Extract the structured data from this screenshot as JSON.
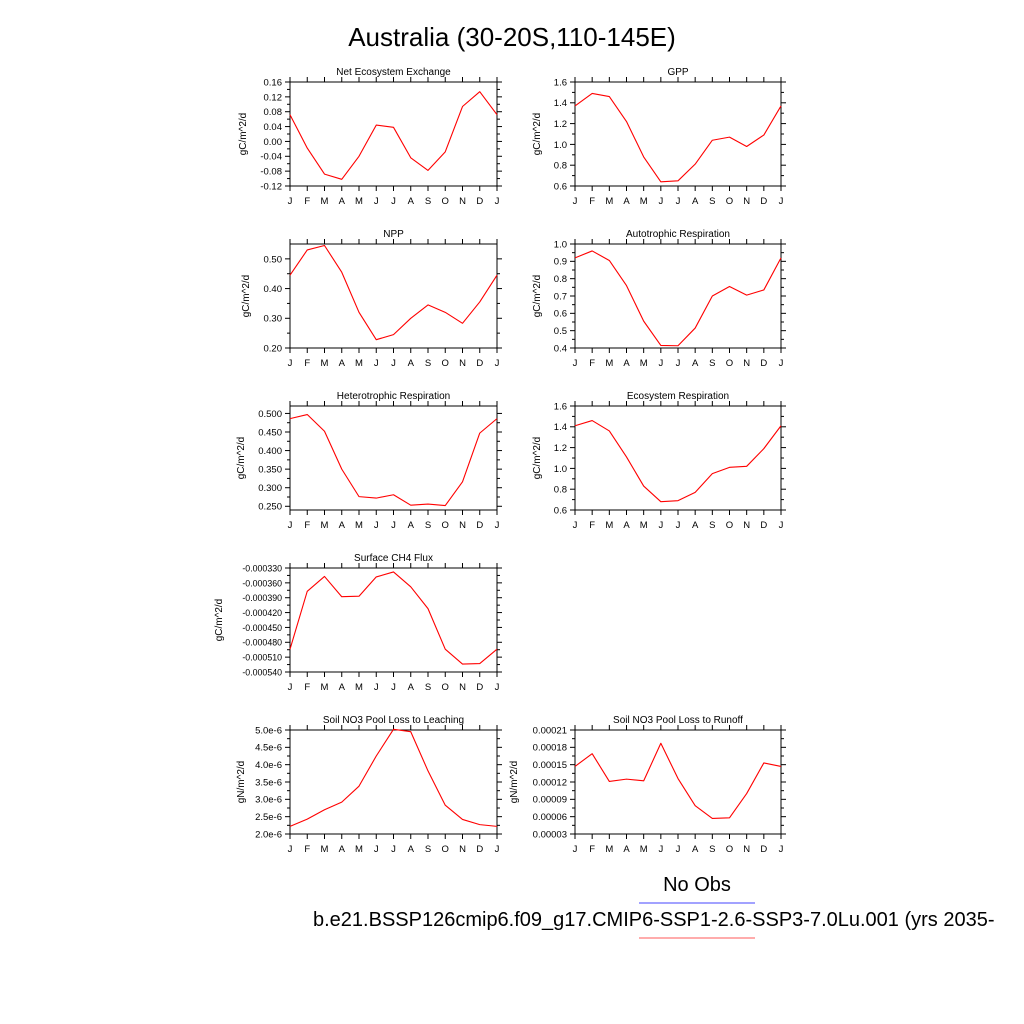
{
  "figure": {
    "title": "Australia (30-20S,110-145E)",
    "legend_no_obs": "No Obs",
    "legend_case": "b.e21.BSSP126cmip6.f09_g17.CMIP6-SSP1-2.6-SSP3-7.0Lu.001 (yrs 2035-",
    "colors": {
      "model": "#ff0000",
      "obs": "#6a6aff",
      "case_line": "#ff7a7a",
      "axis": "#000000"
    }
  },
  "chart_data": [
    {
      "type": "line",
      "title": "Net Ecosystem Exchange",
      "xlabel": "",
      "ylabel": "gC/m^2/d",
      "categories": [
        "J",
        "F",
        "M",
        "A",
        "M",
        "J",
        "J",
        "A",
        "S",
        "O",
        "N",
        "D",
        "J"
      ],
      "ylim": [
        -0.12,
        0.16
      ],
      "yticks": [
        "0.16",
        "0.12",
        "0.08",
        "0.04",
        "0.00",
        "-0.04",
        "-0.08",
        "-0.12"
      ],
      "series": [
        {
          "values": [
            0.072,
            -0.018,
            -0.088,
            -0.102,
            -0.04,
            0.044,
            0.038,
            -0.044,
            -0.078,
            -0.028,
            0.094,
            0.134,
            0.072
          ]
        }
      ]
    },
    {
      "type": "line",
      "title": "GPP",
      "xlabel": "",
      "ylabel": "gC/m^2/d",
      "categories": [
        "J",
        "F",
        "M",
        "A",
        "M",
        "J",
        "J",
        "A",
        "S",
        "O",
        "N",
        "D",
        "J"
      ],
      "ylim": [
        0.6,
        1.6
      ],
      "yticks": [
        "1.6",
        "1.4",
        "1.2",
        "1.0",
        "0.8",
        "0.6"
      ],
      "series": [
        {
          "values": [
            1.37,
            1.49,
            1.46,
            1.22,
            0.88,
            0.64,
            0.65,
            0.81,
            1.04,
            1.07,
            0.98,
            1.09,
            1.37
          ]
        }
      ]
    },
    {
      "type": "line",
      "title": "NPP",
      "xlabel": "",
      "ylabel": "gC/m^2/d",
      "categories": [
        "J",
        "F",
        "M",
        "A",
        "M",
        "J",
        "J",
        "A",
        "S",
        "O",
        "N",
        "D",
        "J"
      ],
      "ylim": [
        0.2,
        0.55
      ],
      "yticks": [
        "0.50",
        "0.40",
        "0.30",
        "0.20"
      ],
      "series": [
        {
          "values": [
            0.445,
            0.53,
            0.545,
            0.455,
            0.32,
            0.228,
            0.245,
            0.3,
            0.345,
            0.32,
            0.283,
            0.355,
            0.445
          ]
        }
      ]
    },
    {
      "type": "line",
      "title": "Autotrophic Respiration",
      "xlabel": "",
      "ylabel": "gC/m^2/d",
      "categories": [
        "J",
        "F",
        "M",
        "A",
        "M",
        "J",
        "J",
        "A",
        "S",
        "O",
        "N",
        "D",
        "J"
      ],
      "ylim": [
        0.4,
        1.0
      ],
      "yticks": [
        "1.0",
        "0.9",
        "0.8",
        "0.7",
        "0.6",
        "0.5",
        "0.4"
      ],
      "series": [
        {
          "values": [
            0.92,
            0.96,
            0.905,
            0.76,
            0.555,
            0.415,
            0.413,
            0.515,
            0.7,
            0.755,
            0.705,
            0.735,
            0.92
          ]
        }
      ]
    },
    {
      "type": "line",
      "title": "Heterotrophic Respiration",
      "xlabel": "",
      "ylabel": "gC/m^2/d",
      "categories": [
        "J",
        "F",
        "M",
        "A",
        "M",
        "J",
        "J",
        "A",
        "S",
        "O",
        "N",
        "D",
        "J"
      ],
      "ylim": [
        0.24,
        0.52
      ],
      "yticks": [
        "0.500",
        "0.450",
        "0.400",
        "0.350",
        "0.300",
        "0.250"
      ],
      "series": [
        {
          "values": [
            0.486,
            0.497,
            0.452,
            0.35,
            0.276,
            0.272,
            0.281,
            0.253,
            0.256,
            0.252,
            0.316,
            0.447,
            0.486
          ]
        }
      ]
    },
    {
      "type": "line",
      "title": "Ecosystem Respiration",
      "xlabel": "",
      "ylabel": "gC/m^2/d",
      "categories": [
        "J",
        "F",
        "M",
        "A",
        "M",
        "J",
        "J",
        "A",
        "S",
        "O",
        "N",
        "D",
        "J"
      ],
      "ylim": [
        0.6,
        1.6
      ],
      "yticks": [
        "1.6",
        "1.4",
        "1.2",
        "1.0",
        "0.8",
        "0.6"
      ],
      "series": [
        {
          "values": [
            1.41,
            1.46,
            1.36,
            1.11,
            0.83,
            0.68,
            0.69,
            0.77,
            0.95,
            1.01,
            1.02,
            1.19,
            1.41
          ]
        }
      ]
    },
    {
      "type": "line",
      "title": "Surface CH4 Flux",
      "xlabel": "",
      "ylabel": "gC/m^2/d",
      "categories": [
        "J",
        "F",
        "M",
        "A",
        "M",
        "J",
        "J",
        "A",
        "S",
        "O",
        "N",
        "D",
        "J"
      ],
      "ylim": [
        -0.00054,
        -0.00033
      ],
      "yticks": [
        "-0.000330",
        "-0.000360",
        "-0.000390",
        "-0.000420",
        "-0.000450",
        "-0.000480",
        "-0.000510",
        "-0.000540"
      ],
      "series": [
        {
          "values": [
            -0.000494,
            -0.000377,
            -0.000347,
            -0.000388,
            -0.000387,
            -0.000348,
            -0.000338,
            -0.000368,
            -0.000412,
            -0.000494,
            -0.000524,
            -0.000523,
            -0.000494
          ]
        }
      ]
    },
    {
      "type": "line",
      "title": "Soil NO3 Pool Loss to Leaching",
      "xlabel": "",
      "ylabel": "gN/m^2/d",
      "categories": [
        "J",
        "F",
        "M",
        "A",
        "M",
        "J",
        "J",
        "A",
        "S",
        "O",
        "N",
        "D",
        "J"
      ],
      "ylim": [
        2e-06,
        5e-06
      ],
      "yticks": [
        "5.0e-6",
        "4.5e-6",
        "4.0e-6",
        "3.5e-6",
        "3.0e-6",
        "2.5e-6",
        "2.0e-6"
      ],
      "series": [
        {
          "values": [
            2.22e-06,
            2.43e-06,
            2.7e-06,
            2.92e-06,
            3.38e-06,
            4.25e-06,
            5.02e-06,
            4.95e-06,
            3.82e-06,
            2.83e-06,
            2.42e-06,
            2.27e-06,
            2.22e-06
          ]
        }
      ]
    },
    {
      "type": "line",
      "title": "Soil NO3 Pool Loss to Runoff",
      "xlabel": "",
      "ylabel": "gN/m^2/d",
      "categories": [
        "J",
        "F",
        "M",
        "A",
        "M",
        "J",
        "J",
        "A",
        "S",
        "O",
        "N",
        "D",
        "J"
      ],
      "ylim": [
        3e-05,
        0.00021
      ],
      "yticks": [
        "0.00021",
        "0.00018",
        "0.00015",
        "0.00012",
        "0.00009",
        "0.00006",
        "0.00003"
      ],
      "series": [
        {
          "values": [
            0.000147,
            0.000169,
            0.000121,
            0.000125,
            0.000122,
            0.000187,
            0.000126,
            7.9e-05,
            5.7e-05,
            5.8e-05,
            0.0001,
            0.000153,
            0.000147
          ]
        }
      ]
    }
  ]
}
